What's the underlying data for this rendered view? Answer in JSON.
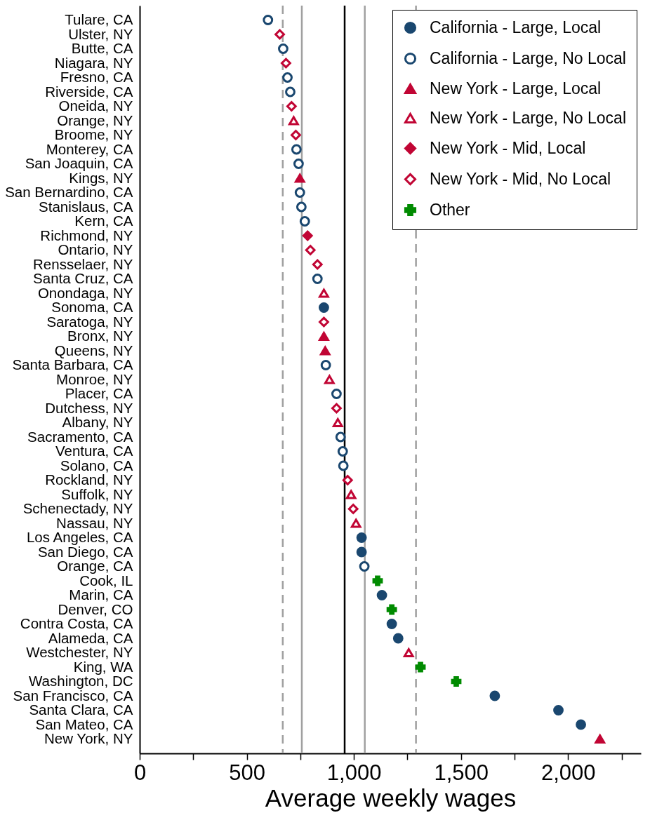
{
  "chart_data": {
    "type": "scatter",
    "orientation": "horizontal",
    "xlabel": "Average weekly wages",
    "legend": "top right",
    "grid": false,
    "categories": [
      "Tulare, CA",
      "Ulster, NY",
      "Butte, CA",
      "Niagara, NY",
      "Fresno, CA",
      "Riverside, CA",
      "Oneida, NY",
      "Orange, NY",
      "Broome, NY",
      "Monterey, CA",
      "San Joaquin, CA",
      "Kings, NY",
      "San Bernardino, CA",
      "Stanislaus, CA",
      "Kern, CA",
      "Richmond, NY",
      "Ontario, NY",
      "Rensselaer, NY",
      "Santa Cruz, CA",
      "Onondaga, NY",
      "Sonoma, CA",
      "Saratoga, NY",
      "Bronx, NY",
      "Queens, NY",
      "Santa Barbara, CA",
      "Monroe, NY",
      "Placer, CA",
      "Dutchess, NY",
      "Albany, NY",
      "Sacramento, CA",
      "Ventura, CA",
      "Solano, CA",
      "Rockland, NY",
      "Suffolk, NY",
      "Schenectady, NY",
      "Nassau, NY",
      "Los Angeles, CA",
      "San Diego, CA",
      "Orange, CA",
      "Cook, IL",
      "Marin, CA",
      "Denver, CO",
      "Contra Costa, CA",
      "Alameda, CA",
      "Westchester, NY",
      "King, WA",
      "Washington, DC",
      "San Francisco, CA",
      "Santa Clara, CA",
      "San Mateo, CA",
      "New York, NY"
    ],
    "xlim": [
      0,
      2340
    ],
    "xticks": [
      0,
      {
        "value": 250,
        "label": null
      },
      500,
      {
        "value": 750,
        "label": null
      },
      {
        "value": 1000,
        "label": "1,000"
      },
      {
        "value": 1250,
        "label": null
      },
      {
        "value": 1500,
        "label": "1,500"
      },
      {
        "value": 1750,
        "label": null
      },
      {
        "value": 2000,
        "label": "2,000"
      },
      {
        "value": 2250,
        "label": null
      }
    ],
    "ref_lines": [
      {
        "axis": "x",
        "value": 668,
        "color": "#a0a0a0",
        "line_style": "dashed"
      },
      {
        "axis": "x",
        "value": 757,
        "color": "#a0a0a0",
        "line_style": "solid"
      },
      {
        "axis": "x",
        "value": 957,
        "color": "#000000",
        "line_style": "solid"
      },
      {
        "axis": "x",
        "value": 1051,
        "color": "#a0a0a0",
        "line_style": "solid"
      },
      {
        "axis": "x",
        "value": 1290,
        "color": "#a0a0a0",
        "line_style": "dashed"
      }
    ],
    "series": [
      {
        "name": "California - Large, Local",
        "color": "#1a476f",
        "marker": "circle",
        "values": [
          null,
          null,
          null,
          null,
          null,
          null,
          null,
          null,
          null,
          null,
          null,
          null,
          null,
          null,
          null,
          null,
          null,
          null,
          null,
          null,
          860,
          null,
          null,
          null,
          null,
          null,
          null,
          null,
          null,
          null,
          null,
          null,
          null,
          null,
          null,
          null,
          1036,
          1036,
          null,
          null,
          1131,
          null,
          1177,
          1207,
          null,
          null,
          null,
          1658,
          1955,
          2060,
          null
        ]
      },
      {
        "name": "California - Large, No Local",
        "color": "#1a476f",
        "marker": "circle-open",
        "values": [
          599,
          null,
          670,
          null,
          690,
          703,
          null,
          null,
          null,
          732,
          742,
          null,
          748,
          755,
          771,
          null,
          null,
          null,
          830,
          null,
          null,
          null,
          null,
          null,
          869,
          null,
          919,
          null,
          null,
          938,
          948,
          951,
          null,
          null,
          null,
          null,
          null,
          null,
          1049,
          null,
          null,
          null,
          null,
          null,
          null,
          null,
          null,
          null,
          null,
          null,
          null
        ]
      },
      {
        "name": "New York - Large, Local",
        "color": "#c10534",
        "marker": "triangle",
        "values": [
          null,
          null,
          null,
          null,
          null,
          null,
          null,
          null,
          null,
          null,
          null,
          748,
          null,
          null,
          null,
          null,
          null,
          null,
          null,
          null,
          null,
          null,
          860,
          866,
          null,
          null,
          null,
          null,
          null,
          null,
          null,
          null,
          null,
          null,
          null,
          null,
          null,
          null,
          null,
          null,
          null,
          null,
          null,
          null,
          null,
          null,
          null,
          null,
          null,
          null,
          2149
        ]
      },
      {
        "name": "New York - Large, No Local",
        "color": "#c10534",
        "marker": "triangle-open",
        "values": [
          null,
          null,
          null,
          null,
          null,
          null,
          null,
          719,
          null,
          null,
          null,
          null,
          null,
          null,
          null,
          null,
          null,
          null,
          null,
          860,
          null,
          null,
          null,
          null,
          null,
          886,
          null,
          null,
          925,
          null,
          null,
          null,
          null,
          987,
          null,
          1010,
          null,
          null,
          null,
          null,
          null,
          null,
          null,
          null,
          1256,
          null,
          null,
          null,
          null,
          null,
          null
        ]
      },
      {
        "name": "New York - Mid, Local",
        "color": "#c10534",
        "marker": "diamond",
        "values": [
          null,
          null,
          null,
          null,
          null,
          null,
          null,
          null,
          null,
          null,
          null,
          null,
          null,
          null,
          null,
          784,
          null,
          null,
          null,
          null,
          null,
          null,
          null,
          null,
          null,
          null,
          null,
          null,
          null,
          null,
          null,
          null,
          null,
          null,
          null,
          null,
          null,
          null,
          null,
          null,
          null,
          null,
          null,
          null,
          null,
          null,
          null,
          null,
          null,
          null,
          null
        ]
      },
      {
        "name": "New York - Mid, No Local",
        "color": "#c10534",
        "marker": "diamond-open",
        "values": [
          null,
          654,
          null,
          683,
          null,
          null,
          709,
          null,
          729,
          null,
          null,
          null,
          null,
          null,
          null,
          null,
          797,
          830,
          null,
          null,
          null,
          860,
          null,
          null,
          null,
          null,
          null,
          919,
          null,
          null,
          null,
          null,
          971,
          null,
          997,
          null,
          null,
          null,
          null,
          null,
          null,
          null,
          null,
          null,
          null,
          null,
          null,
          null,
          null,
          null,
          null
        ]
      },
      {
        "name": "Other",
        "color": "#008b00",
        "marker": "cross",
        "values": [
          null,
          null,
          null,
          null,
          null,
          null,
          null,
          null,
          null,
          null,
          null,
          null,
          null,
          null,
          null,
          null,
          null,
          null,
          null,
          null,
          null,
          null,
          null,
          null,
          null,
          null,
          null,
          null,
          null,
          null,
          null,
          null,
          null,
          null,
          null,
          null,
          null,
          null,
          null,
          1111,
          null,
          1177,
          null,
          null,
          null,
          1311,
          1478,
          null,
          null,
          null,
          null
        ]
      }
    ]
  }
}
